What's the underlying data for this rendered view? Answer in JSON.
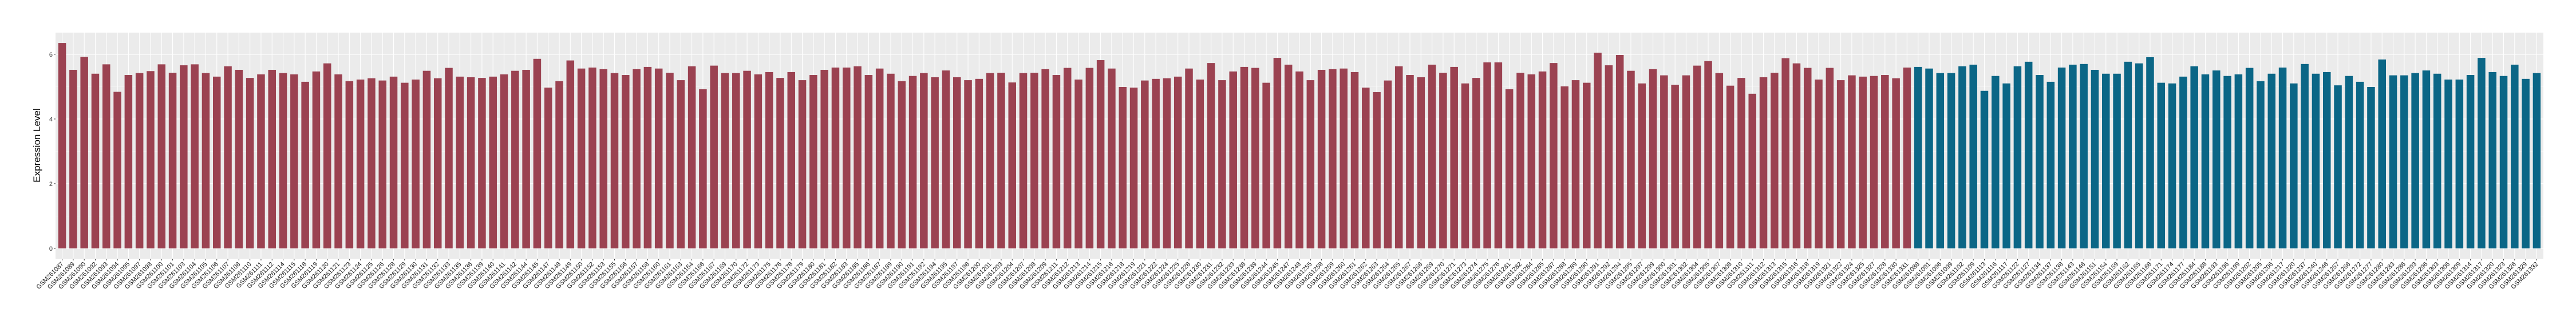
{
  "chart_data": {
    "type": "bar",
    "title": "",
    "xlabel": "",
    "ylabel": "Expression Level",
    "ylim": [
      -0.32,
      6.67
    ],
    "yticks": [
      "0",
      "2",
      "4",
      "6"
    ],
    "ytick_values": [
      0,
      2,
      4,
      6
    ],
    "grid": true,
    "legend": "none",
    "panel_background": "#EBEBEB",
    "groups": [
      {
        "color": "#9B4251",
        "categories": [
          "GSM261087",
          "GSM261089",
          "GSM261090",
          "GSM261092",
          "GSM261093",
          "GSM261094",
          "GSM261095",
          "GSM261097",
          "GSM261098",
          "GSM261100",
          "GSM261101",
          "GSM261103",
          "GSM261104",
          "GSM261105",
          "GSM261106",
          "GSM261107",
          "GSM261108",
          "GSM261110",
          "GSM261111",
          "GSM261112",
          "GSM261114",
          "GSM261115",
          "GSM261118",
          "GSM261119",
          "GSM261120",
          "GSM261121",
          "GSM261123",
          "GSM261124",
          "GSM261125",
          "GSM261126",
          "GSM261128",
          "GSM261129",
          "GSM261130",
          "GSM261131",
          "GSM261132",
          "GSM261133",
          "GSM261135",
          "GSM261136",
          "GSM261139",
          "GSM261140",
          "GSM261141",
          "GSM261142",
          "GSM261144",
          "GSM261145",
          "GSM261147",
          "GSM261148",
          "GSM261149",
          "GSM261150",
          "GSM261152",
          "GSM261153",
          "GSM261155",
          "GSM261156",
          "GSM261157",
          "GSM261158",
          "GSM261160",
          "GSM261161",
          "GSM261163",
          "GSM261164",
          "GSM261166",
          "GSM261167",
          "GSM261169",
          "GSM261170",
          "GSM261172",
          "GSM261173",
          "GSM261175",
          "GSM261176",
          "GSM261178",
          "GSM261179",
          "GSM261180",
          "GSM261181",
          "GSM261182",
          "GSM261183",
          "GSM261185",
          "GSM261186",
          "GSM261187",
          "GSM261189",
          "GSM261190",
          "GSM261191",
          "GSM261192",
          "GSM261194",
          "GSM261195",
          "GSM261197",
          "GSM261198",
          "GSM261200",
          "GSM261201",
          "GSM261203",
          "GSM261204",
          "GSM261207",
          "GSM261208",
          "GSM261209",
          "GSM261211",
          "GSM261212",
          "GSM261213",
          "GSM261214",
          "GSM261215",
          "GSM261216",
          "GSM261218",
          "GSM261219",
          "GSM261221",
          "GSM261222",
          "GSM261224",
          "GSM261225",
          "GSM261228",
          "GSM261230",
          "GSM261231",
          "GSM261232",
          "GSM261233",
          "GSM261238",
          "GSM261239",
          "GSM261244",
          "GSM261245",
          "GSM261247",
          "GSM261248",
          "GSM261255",
          "GSM261258",
          "GSM261259",
          "GSM261260",
          "GSM261261",
          "GSM261262",
          "GSM261263",
          "GSM261264",
          "GSM261265",
          "GSM261267",
          "GSM261268",
          "GSM261269",
          "GSM261270",
          "GSM261271",
          "GSM261273",
          "GSM261274",
          "GSM261275",
          "GSM261276",
          "GSM261281",
          "GSM261282",
          "GSM261284",
          "GSM261285",
          "GSM261287",
          "GSM261288",
          "GSM261289",
          "GSM261290",
          "GSM261291",
          "GSM261292",
          "GSM261294",
          "GSM261295",
          "GSM261297",
          "GSM261299",
          "GSM261300",
          "GSM261301",
          "GSM261302",
          "GSM261304",
          "GSM261305",
          "GSM261307",
          "GSM261308",
          "GSM261310",
          "GSM261311",
          "GSM261312",
          "GSM261313",
          "GSM261315",
          "GSM261316",
          "GSM261318",
          "GSM261319",
          "GSM261321",
          "GSM261322",
          "GSM261324",
          "GSM261325",
          "GSM261327",
          "GSM261328",
          "GSM261330",
          "GSM261331"
        ],
        "values": [
          6.35,
          5.52,
          5.92,
          5.4,
          5.69,
          4.84,
          5.36,
          5.42,
          5.48,
          5.69,
          5.43,
          5.66,
          5.69,
          5.42,
          5.31,
          5.63,
          5.52,
          5.27,
          5.38,
          5.52,
          5.42,
          5.38,
          5.15,
          5.47,
          5.72,
          5.38,
          5.17,
          5.22,
          5.26,
          5.19,
          5.31,
          5.12,
          5.22,
          5.49,
          5.26,
          5.58,
          5.31,
          5.29,
          5.27,
          5.31,
          5.38,
          5.49,
          5.52,
          5.86,
          4.97,
          5.17,
          5.81,
          5.56,
          5.59,
          5.54,
          5.42,
          5.36,
          5.54,
          5.61,
          5.56,
          5.43,
          5.2,
          5.63,
          4.92,
          5.65,
          5.42,
          5.42,
          5.49,
          5.38,
          5.45,
          5.27,
          5.45,
          5.2,
          5.36,
          5.52,
          5.59,
          5.59,
          5.63,
          5.36,
          5.56,
          5.4,
          5.17,
          5.33,
          5.42,
          5.29,
          5.5,
          5.29,
          5.2,
          5.24,
          5.42,
          5.43,
          5.13,
          5.42,
          5.43,
          5.54,
          5.36,
          5.58,
          5.22,
          5.58,
          5.82,
          5.56,
          4.99,
          4.97,
          5.19,
          5.24,
          5.26,
          5.31,
          5.56,
          5.22,
          5.73,
          5.2,
          5.47,
          5.61,
          5.58,
          5.12,
          5.89,
          5.68,
          5.47,
          5.2,
          5.52,
          5.54,
          5.56,
          5.45,
          4.97,
          4.83,
          5.19,
          5.63,
          5.36,
          5.29,
          5.68,
          5.43,
          5.61,
          5.1,
          5.27,
          5.75,
          5.75,
          4.92,
          5.43,
          5.38,
          5.47,
          5.73,
          5.01,
          5.2,
          5.12,
          6.05,
          5.66,
          5.98,
          5.49,
          5.1,
          5.54,
          5.35,
          5.06,
          5.35,
          5.65,
          5.79,
          5.42,
          5.03,
          5.27,
          4.78,
          5.29,
          5.43,
          5.88,
          5.72,
          5.58,
          5.22,
          5.58,
          5.2,
          5.35,
          5.31,
          5.33,
          5.36,
          5.26,
          5.59
        ]
      },
      {
        "color": "#0B6686",
        "categories": [
          "GSM261088",
          "GSM261091",
          "GSM261096",
          "GSM261099",
          "GSM261102",
          "GSM261109",
          "GSM261113",
          "GSM261116",
          "GSM261117",
          "GSM261122",
          "GSM261127",
          "GSM261134",
          "GSM261137",
          "GSM261138",
          "GSM261143",
          "GSM261146",
          "GSM261151",
          "GSM261154",
          "GSM261159",
          "GSM261162",
          "GSM261165",
          "GSM261168",
          "GSM261171",
          "GSM261174",
          "GSM261177",
          "GSM261184",
          "GSM261188",
          "GSM261193",
          "GSM261196",
          "GSM261199",
          "GSM261202",
          "GSM261205",
          "GSM261206",
          "GSM261217",
          "GSM261220",
          "GSM261237",
          "GSM261240",
          "GSM261246",
          "GSM261257",
          "GSM261266",
          "GSM261272",
          "GSM261277",
          "GSM261280",
          "GSM261283",
          "GSM261286",
          "GSM261293",
          "GSM261296",
          "GSM261303",
          "GSM261306",
          "GSM261309",
          "GSM261314",
          "GSM261317",
          "GSM261320",
          "GSM261323",
          "GSM261326",
          "GSM261329",
          "GSM261332"
        ],
        "values": [
          5.61,
          5.56,
          5.42,
          5.42,
          5.63,
          5.68,
          4.87,
          5.33,
          5.1,
          5.63,
          5.77,
          5.36,
          5.15,
          5.59,
          5.68,
          5.7,
          5.52,
          5.4,
          5.4,
          5.77,
          5.72,
          5.91,
          5.12,
          5.1,
          5.31,
          5.63,
          5.38,
          5.5,
          5.33,
          5.38,
          5.58,
          5.17,
          5.4,
          5.59,
          5.1,
          5.7,
          5.4,
          5.45,
          5.04,
          5.33,
          5.15,
          4.99,
          5.84,
          5.35,
          5.35,
          5.42,
          5.5,
          5.4,
          5.22,
          5.22,
          5.36,
          5.89,
          5.45,
          5.33,
          5.68,
          5.24,
          5.42
        ]
      }
    ]
  }
}
